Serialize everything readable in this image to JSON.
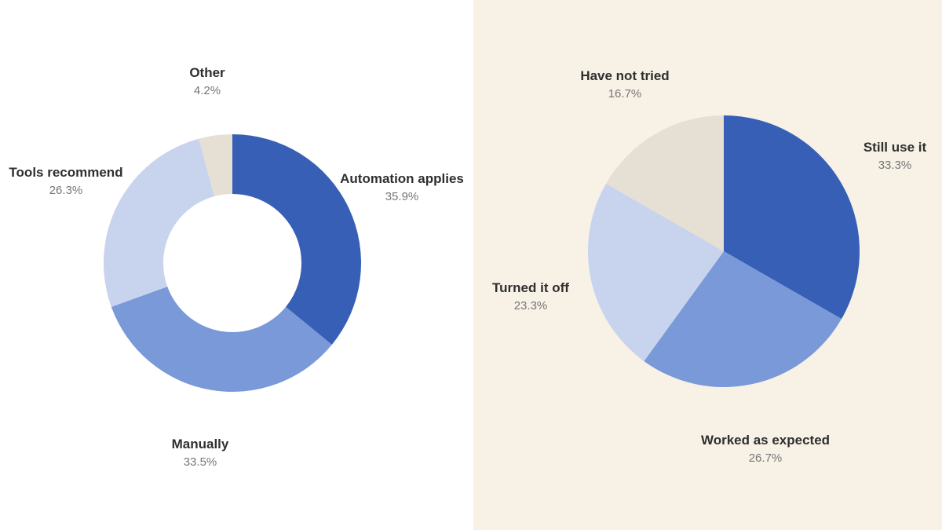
{
  "colors": {
    "dark_blue": "#375fb6",
    "mid_blue": "#7a99d9",
    "light_blue": "#c8d4ee",
    "beige": "#e6dfd3",
    "left_background": "#ffffff",
    "right_background": "#f7f1e6"
  },
  "chart_data": [
    {
      "type": "pie",
      "variant": "donut",
      "slices": [
        {
          "label": "Automation applies",
          "value": 35.9,
          "value_label": "35.9%",
          "color": "#375fb6"
        },
        {
          "label": "Manually",
          "value": 33.5,
          "value_label": "33.5%",
          "color": "#7a99d9"
        },
        {
          "label": "Tools recommend",
          "value": 26.3,
          "value_label": "26.3%",
          "color": "#c8d4ee"
        },
        {
          "label": "Other",
          "value": 4.2,
          "value_label": "4.2%",
          "color": "#e6dfd3"
        }
      ]
    },
    {
      "type": "pie",
      "variant": "pie",
      "slices": [
        {
          "label": "Still use it",
          "value": 33.3,
          "value_label": "33.3%",
          "color": "#375fb6"
        },
        {
          "label": "Worked as expected",
          "value": 26.7,
          "value_label": "26.7%",
          "color": "#7a99d9"
        },
        {
          "label": "Turned it off",
          "value": 23.3,
          "value_label": "23.3%",
          "color": "#c8d4ee"
        },
        {
          "label": "Have not tried",
          "value": 16.7,
          "value_label": "16.7%",
          "color": "#e6dfd3"
        }
      ]
    }
  ]
}
